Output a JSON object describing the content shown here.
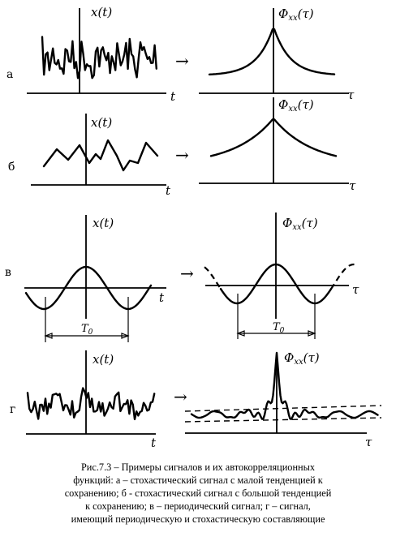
{
  "labels": {
    "x_t": "x(t)",
    "phi": "Φ",
    "phi_sub": "xx",
    "phi_arg": "(τ)",
    "t": "t",
    "tau": "τ",
    "T0": "T",
    "T0_sub": "0",
    "arrow": "→"
  },
  "rows": [
    {
      "id": "a",
      "label": "а"
    },
    {
      "id": "b",
      "label": "б"
    },
    {
      "id": "v",
      "label": "в"
    },
    {
      "id": "g",
      "label": "г"
    }
  ],
  "caption": {
    "lines": [
      "Рис.7.3 – Примеры сигналов и их автокорреляционных",
      "функций: а – стохастический сигнал с малой тенденцией к",
      "сохранению; б - стохастический сигнал с большой тенденцией",
      "к сохранению; в – периодический сигнал; г – сигнал,",
      "имеющий периодическую и стохастическую составляющие"
    ]
  }
}
